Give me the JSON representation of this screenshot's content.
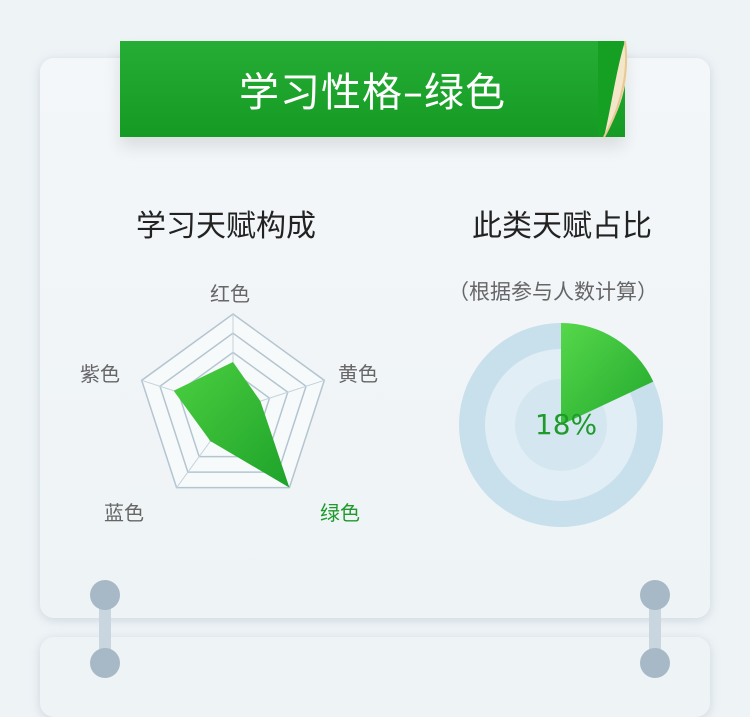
{
  "banner": {
    "title": "学习性格–绿色"
  },
  "talent_composition": {
    "title": "学习天赋构成",
    "axes": [
      "红色",
      "黄色",
      "绿色",
      "蓝色",
      "紫色"
    ],
    "highlight": "绿色"
  },
  "talent_ratio": {
    "title": "此类天赋占比",
    "subtitle": "（根据参与人数计算）",
    "percent_label": "18%"
  },
  "colors": {
    "accent_green": "#1f9a2b",
    "banner_green": "#1a9f28",
    "donut_outer": "#c8dfec",
    "donut_inner": "#e2eef5"
  },
  "chart_data": [
    {
      "type": "radar",
      "axes": [
        "红色",
        "黄色",
        "绿色",
        "蓝色",
        "紫色"
      ],
      "values": [
        0.5,
        0.3,
        1.0,
        0.4,
        0.65
      ],
      "range": [
        0,
        1
      ]
    },
    {
      "type": "pie",
      "categories": [
        "绿色"
      ],
      "values": [
        18
      ],
      "label": "18%"
    }
  ]
}
